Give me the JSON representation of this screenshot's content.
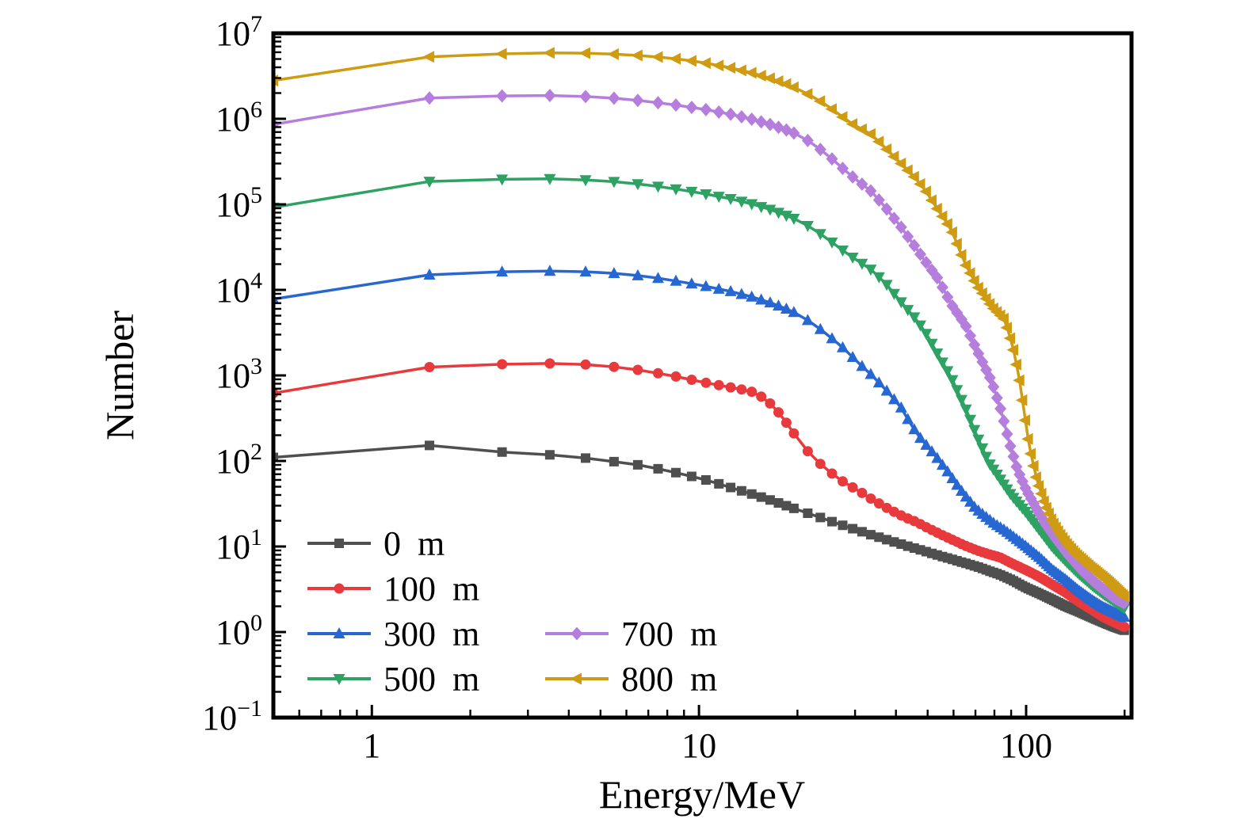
{
  "figure": {
    "background": "#ffffff",
    "axis_color": "#000000"
  },
  "chart_data": {
    "type": "line",
    "title": "",
    "xlabel": "Energy/MeV",
    "ylabel": "Number",
    "x_scale": "log",
    "y_scale": "log",
    "xlim": [
      0.5,
      210
    ],
    "ylim": [
      0.1,
      10000000
    ],
    "grid": false,
    "x_ticks": [
      {
        "value": 1,
        "label": "1"
      },
      {
        "value": 10,
        "label": "10"
      },
      {
        "value": 100,
        "label": "100"
      }
    ],
    "y_ticks": [
      {
        "value": 0.1,
        "base": "10",
        "exp": "−1"
      },
      {
        "value": 1,
        "base": "10",
        "exp": "0"
      },
      {
        "value": 10,
        "base": "10",
        "exp": "1"
      },
      {
        "value": 100,
        "base": "10",
        "exp": "2"
      },
      {
        "value": 1000,
        "base": "10",
        "exp": "3"
      },
      {
        "value": 10000,
        "base": "10",
        "exp": "4"
      },
      {
        "value": 100000,
        "base": "10",
        "exp": "5"
      },
      {
        "value": 1000000,
        "base": "10",
        "exp": "6"
      },
      {
        "value": 10000000,
        "base": "10",
        "exp": "7"
      }
    ],
    "marker_grid": {
      "start": 0.5,
      "fine_step": 1,
      "fine_until": 19.5,
      "coarse_step": 2,
      "end": 199.5
    },
    "legend": {
      "position": "lower-left",
      "columns": 2,
      "items": [
        {
          "label": "0 m",
          "series": 0,
          "row": 0,
          "col": 0
        },
        {
          "label": "100 m",
          "series": 1,
          "row": 1,
          "col": 0
        },
        {
          "label": "300 m",
          "series": 2,
          "row": 2,
          "col": 0
        },
        {
          "label": "500 m",
          "series": 3,
          "row": 3,
          "col": 0
        },
        {
          "label": "700 m",
          "series": 4,
          "row": 2,
          "col": 1
        },
        {
          "label": "800 m",
          "series": 5,
          "row": 3,
          "col": 1
        }
      ]
    },
    "series": [
      {
        "name": "0 m",
        "color": "#4f4f4f",
        "marker": "square",
        "points": [
          [
            0.5,
            110
          ],
          [
            1.5,
            152
          ],
          [
            2.5,
            127
          ],
          [
            3.5,
            118
          ],
          [
            4.5,
            108
          ],
          [
            5.5,
            98
          ],
          [
            6.5,
            90
          ],
          [
            7.5,
            81
          ],
          [
            8.5,
            73
          ],
          [
            9.5,
            66
          ],
          [
            10.5,
            60
          ],
          [
            12.5,
            49
          ],
          [
            14.5,
            41
          ],
          [
            16.5,
            35
          ],
          [
            18.5,
            30
          ],
          [
            20.5,
            26
          ],
          [
            23,
            22.5
          ],
          [
            26,
            19
          ],
          [
            29,
            16.5
          ],
          [
            33,
            14
          ],
          [
            37,
            12.2
          ],
          [
            41,
            10.8
          ],
          [
            45,
            9.7
          ],
          [
            50,
            8.6
          ],
          [
            55,
            7.7
          ],
          [
            60,
            7.0
          ],
          [
            66,
            6.3
          ],
          [
            72,
            5.7
          ],
          [
            78,
            5.1
          ],
          [
            83,
            4.7
          ],
          [
            90,
            4.1
          ],
          [
            100,
            3.3
          ],
          [
            110,
            2.8
          ],
          [
            120,
            2.4
          ],
          [
            132,
            2.0
          ],
          [
            144,
            1.75
          ],
          [
            158,
            1.5
          ],
          [
            172,
            1.3
          ],
          [
            186,
            1.15
          ],
          [
            199.5,
            1.05
          ]
        ]
      },
      {
        "name": "100 m",
        "color": "#e83a3c",
        "marker": "circle",
        "points": [
          [
            0.5,
            620
          ],
          [
            1.5,
            1250
          ],
          [
            2.5,
            1350
          ],
          [
            3.5,
            1380
          ],
          [
            4.5,
            1340
          ],
          [
            5.5,
            1260
          ],
          [
            6.5,
            1160
          ],
          [
            7.5,
            1060
          ],
          [
            8.5,
            970
          ],
          [
            9.5,
            890
          ],
          [
            10.5,
            820
          ],
          [
            11.5,
            770
          ],
          [
            12.5,
            725
          ],
          [
            13.5,
            685
          ],
          [
            14.5,
            645
          ],
          [
            15.5,
            565
          ],
          [
            16.5,
            470
          ],
          [
            17.5,
            370
          ],
          [
            18.5,
            280
          ],
          [
            19.5,
            210
          ],
          [
            20.5,
            163
          ],
          [
            21.5,
            130
          ],
          [
            22.5,
            107
          ],
          [
            24,
            86
          ],
          [
            26,
            67
          ],
          [
            28,
            55
          ],
          [
            31,
            44
          ],
          [
            34,
            35
          ],
          [
            38,
            27.5
          ],
          [
            42,
            22.5
          ],
          [
            46,
            19.5
          ],
          [
            50,
            16.5
          ],
          [
            55,
            13.8
          ],
          [
            60,
            11.8
          ],
          [
            66,
            10
          ],
          [
            72,
            8.8
          ],
          [
            78,
            8
          ],
          [
            83,
            7.5
          ],
          [
            90,
            6.4
          ],
          [
            100,
            5.3
          ],
          [
            110,
            4.4
          ],
          [
            120,
            3.6
          ],
          [
            132,
            2.9
          ],
          [
            144,
            2.3
          ],
          [
            158,
            1.85
          ],
          [
            172,
            1.5
          ],
          [
            186,
            1.3
          ],
          [
            199.5,
            1.15
          ]
        ]
      },
      {
        "name": "300 m",
        "color": "#2767d2",
        "marker": "triangle-up",
        "points": [
          [
            0.5,
            7800
          ],
          [
            1.5,
            15000
          ],
          [
            2.5,
            16300
          ],
          [
            3.5,
            16600
          ],
          [
            4.5,
            16300
          ],
          [
            5.5,
            15600
          ],
          [
            6.5,
            14700
          ],
          [
            7.5,
            13700
          ],
          [
            8.5,
            12700
          ],
          [
            9.5,
            11800
          ],
          [
            10.5,
            11000
          ],
          [
            12.5,
            9600
          ],
          [
            14.5,
            8300
          ],
          [
            16.5,
            7100
          ],
          [
            18.5,
            6000
          ],
          [
            20.5,
            5000
          ],
          [
            23,
            3700
          ],
          [
            25.5,
            2700
          ],
          [
            28,
            2000
          ],
          [
            30.7,
            1400
          ],
          [
            33.8,
            1000
          ],
          [
            37,
            700
          ],
          [
            41.5,
            420
          ],
          [
            44.6,
            260
          ],
          [
            48,
            175
          ],
          [
            51,
            135
          ],
          [
            54,
            103
          ],
          [
            58,
            72
          ],
          [
            62,
            50
          ],
          [
            65.2,
            39
          ],
          [
            70,
            28
          ],
          [
            75,
            22.5
          ],
          [
            80,
            18.5
          ],
          [
            85,
            16
          ],
          [
            92,
            12.8
          ],
          [
            100,
            10
          ],
          [
            110,
            7.4
          ],
          [
            120,
            5.4
          ],
          [
            132,
            4.1
          ],
          [
            144,
            3.1
          ],
          [
            158,
            2.4
          ],
          [
            172,
            1.95
          ],
          [
            186,
            1.7
          ],
          [
            199.5,
            1.5
          ]
        ]
      },
      {
        "name": "500 m",
        "color": "#2da263",
        "marker": "triangle-down",
        "points": [
          [
            0.5,
            92000
          ],
          [
            1.5,
            185000
          ],
          [
            2.5,
            196000
          ],
          [
            3.5,
            199000
          ],
          [
            4.5,
            193000
          ],
          [
            5.5,
            184000
          ],
          [
            6.5,
            173000
          ],
          [
            7.5,
            162000
          ],
          [
            8.5,
            151000
          ],
          [
            9.5,
            141000
          ],
          [
            10.5,
            132000
          ],
          [
            12.5,
            116000
          ],
          [
            14.5,
            101000
          ],
          [
            16.5,
            87000
          ],
          [
            18.5,
            74000
          ],
          [
            20.5,
            63000
          ],
          [
            23,
            48000
          ],
          [
            25.5,
            36000
          ],
          [
            29,
            25000
          ],
          [
            33.8,
            17000
          ],
          [
            37.5,
            11500
          ],
          [
            41.5,
            7200
          ],
          [
            45.5,
            4800
          ],
          [
            49,
            3300
          ],
          [
            53.8,
            1750
          ],
          [
            59,
            950
          ],
          [
            65.2,
            420
          ],
          [
            71,
            190
          ],
          [
            77,
            95
          ],
          [
            83,
            63
          ],
          [
            90,
            40
          ],
          [
            100,
            25
          ],
          [
            110,
            15.5
          ],
          [
            120,
            10
          ],
          [
            132,
            6.8
          ],
          [
            144,
            4.9
          ],
          [
            158,
            3.6
          ],
          [
            172,
            2.8
          ],
          [
            186,
            2.3
          ],
          [
            199.5,
            1.9
          ]
        ]
      },
      {
        "name": "700 m",
        "color": "#b57edd",
        "marker": "diamond",
        "points": [
          [
            0.5,
            860000
          ],
          [
            1.5,
            1750000
          ],
          [
            2.5,
            1850000
          ],
          [
            3.5,
            1870000
          ],
          [
            4.5,
            1820000
          ],
          [
            5.5,
            1740000
          ],
          [
            6.5,
            1640000
          ],
          [
            7.5,
            1540000
          ],
          [
            8.5,
            1450000
          ],
          [
            9.5,
            1360000
          ],
          [
            10.5,
            1280000
          ],
          [
            12.5,
            1130000
          ],
          [
            14.5,
            990000
          ],
          [
            16.5,
            860000
          ],
          [
            18.5,
            740000
          ],
          [
            20.5,
            630000
          ],
          [
            23,
            470000
          ],
          [
            25.5,
            340000
          ],
          [
            29,
            220000
          ],
          [
            33.8,
            140000
          ],
          [
            37.5,
            88000
          ],
          [
            41.5,
            54000
          ],
          [
            45.5,
            33000
          ],
          [
            49,
            22000
          ],
          [
            53.8,
            13500
          ],
          [
            59,
            6800
          ],
          [
            65.2,
            3900
          ],
          [
            71,
            1900
          ],
          [
            78.7,
            830
          ],
          [
            84,
            380
          ],
          [
            89,
            160
          ],
          [
            94,
            80
          ],
          [
            100,
            46
          ],
          [
            108,
            27
          ],
          [
            116,
            17
          ],
          [
            125,
            11.5
          ],
          [
            135,
            7.8
          ],
          [
            147,
            5.4
          ],
          [
            160,
            4.0
          ],
          [
            175,
            3.0
          ],
          [
            187,
            2.5
          ],
          [
            199.5,
            2.2
          ]
        ]
      },
      {
        "name": "800 m",
        "color": "#cf9b12",
        "marker": "triangle-left",
        "points": [
          [
            0.5,
            2800000
          ],
          [
            1.5,
            5300000
          ],
          [
            2.5,
            5750000
          ],
          [
            3.5,
            5900000
          ],
          [
            4.5,
            5850000
          ],
          [
            5.5,
            5700000
          ],
          [
            6.5,
            5500000
          ],
          [
            7.5,
            5280000
          ],
          [
            8.5,
            5020000
          ],
          [
            9.5,
            4750000
          ],
          [
            10.5,
            4480000
          ],
          [
            12.5,
            3950000
          ],
          [
            14.5,
            3450000
          ],
          [
            16.5,
            2980000
          ],
          [
            18.5,
            2550000
          ],
          [
            20.5,
            2150000
          ],
          [
            23,
            1700000
          ],
          [
            25.5,
            1300000
          ],
          [
            29,
            900000
          ],
          [
            33.8,
            650000
          ],
          [
            37.5,
            440000
          ],
          [
            41.5,
            300000
          ],
          [
            45.5,
            210000
          ],
          [
            49,
            150000
          ],
          [
            53.8,
            86000
          ],
          [
            59,
            51000
          ],
          [
            65.2,
            20000
          ],
          [
            71,
            11000
          ],
          [
            78.7,
            6300
          ],
          [
            86,
            4500
          ],
          [
            91,
            2200
          ],
          [
            95,
            1000
          ],
          [
            98,
            450
          ],
          [
            101,
            200
          ],
          [
            104,
            110
          ],
          [
            108,
            60
          ],
          [
            114,
            32
          ],
          [
            120,
            20
          ],
          [
            127,
            14
          ],
          [
            134,
            10.5
          ],
          [
            142,
            8.2
          ],
          [
            150,
            6.8
          ],
          [
            158,
            5.7
          ],
          [
            167,
            4.8
          ],
          [
            177,
            4.0
          ],
          [
            187,
            3.3
          ],
          [
            199.5,
            2.6
          ]
        ]
      }
    ]
  }
}
